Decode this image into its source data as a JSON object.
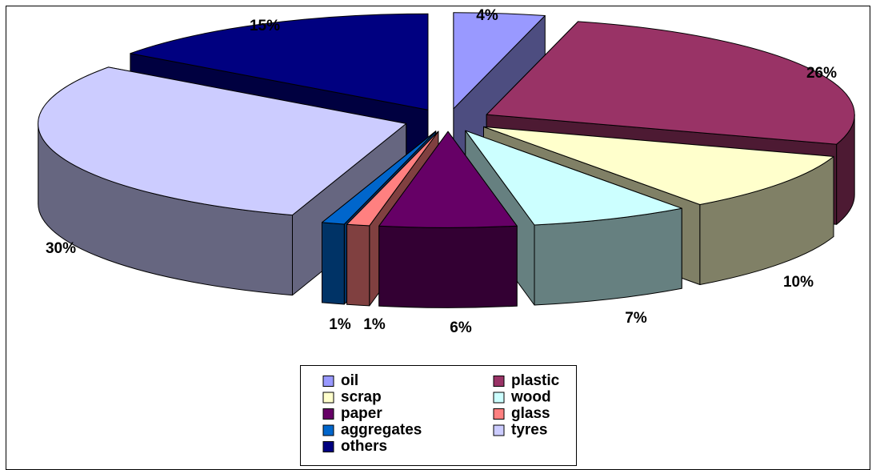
{
  "chart_data": {
    "type": "pie",
    "title": "",
    "series": [
      {
        "name": "",
        "categories": [
          "oil",
          "plastic",
          "scrap",
          "wood",
          "paper",
          "glass",
          "aggregates",
          "tyres",
          "others"
        ],
        "values": [
          4,
          26,
          10,
          7,
          6,
          1,
          1,
          30,
          15
        ],
        "labels": [
          "4%",
          "26%",
          "10%",
          "7%",
          "6%",
          "1%",
          "1%",
          "30%",
          "15%"
        ],
        "colors": [
          "#9999ff",
          "#993366",
          "#ffffcc",
          "#ccffff",
          "#660066",
          "#ff8080",
          "#0066cc",
          "#ccccff",
          "#000080"
        ],
        "side_colors": [
          "#4d4d80",
          "#4d1a33",
          "#808066",
          "#668080",
          "#330033",
          "#804040",
          "#003366",
          "#666680",
          "#000040"
        ]
      }
    ],
    "exploded": true,
    "three_d": true,
    "legend": {
      "position": "bottom",
      "columns": 2,
      "entries": [
        "oil",
        "plastic",
        "scrap",
        "wood",
        "paper",
        "glass",
        "aggregates",
        "tyres",
        "others"
      ]
    }
  }
}
